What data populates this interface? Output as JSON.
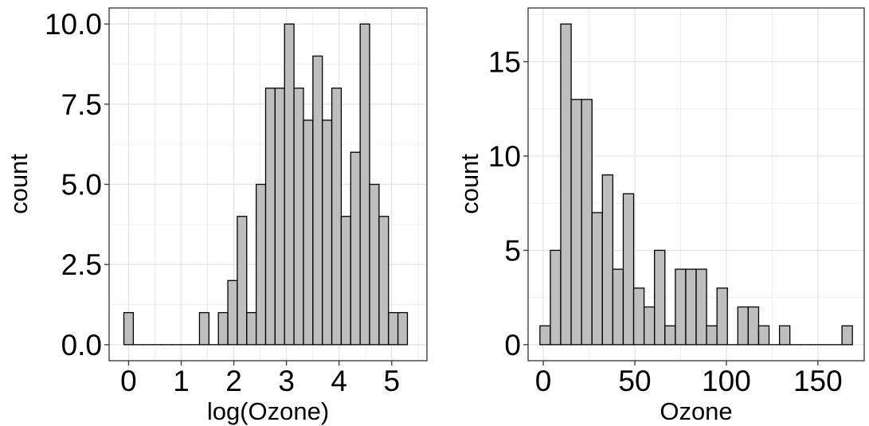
{
  "chart_data": [
    {
      "type": "bar",
      "histogram": true,
      "xlabel": "log(Ozone)",
      "ylabel": "count",
      "bin_width": 0.1796,
      "bin_centers": [
        0.0,
        0.1796,
        0.3593,
        0.5389,
        0.7185,
        0.8981,
        1.0778,
        1.2574,
        1.437,
        1.6166,
        1.7963,
        1.9759,
        2.1555,
        2.3351,
        2.5148,
        2.6944,
        2.874,
        3.0536,
        3.2333,
        3.4129,
        3.5925,
        3.7721,
        3.9518,
        4.1314,
        4.311,
        4.4906,
        4.6703,
        4.8499,
        5.0295,
        5.2091
      ],
      "values": [
        1,
        0,
        0,
        0,
        0,
        0,
        0,
        0,
        1,
        0,
        1,
        2,
        4,
        1,
        5,
        8,
        8,
        10,
        8,
        7,
        9,
        7,
        8,
        4,
        6,
        10,
        5,
        4,
        1,
        1
      ],
      "xlim": [
        -0.37,
        5.67
      ],
      "ylim": [
        -0.5,
        10.5
      ],
      "xticks": [
        0,
        1,
        2,
        3,
        4,
        5
      ],
      "xtick_labels": [
        "0",
        "1",
        "2",
        "3",
        "4",
        "5"
      ],
      "yticks": [
        0,
        2.5,
        5,
        7.5,
        10
      ],
      "ytick_labels": [
        "0.0",
        "2.5",
        "5.0",
        "7.5",
        "10.0"
      ],
      "grid": true,
      "bar_color": "#bebebe",
      "bar_edge_color": "#000000"
    },
    {
      "type": "bar",
      "histogram": true,
      "xlabel": "Ozone",
      "ylabel": "count",
      "bin_width": 5.69,
      "bin_centers": [
        1.0,
        6.69,
        12.38,
        18.07,
        23.76,
        29.45,
        35.14,
        40.83,
        46.52,
        52.21,
        57.9,
        63.59,
        69.28,
        74.97,
        80.66,
        86.35,
        92.03,
        97.72,
        103.41,
        109.1,
        114.79,
        120.48,
        126.17,
        131.86,
        137.55,
        143.24,
        148.93,
        154.62,
        160.31,
        166.0
      ],
      "values": [
        1,
        5,
        17,
        13,
        13,
        7,
        9,
        4,
        8,
        3,
        2,
        5,
        1,
        4,
        4,
        4,
        1,
        3,
        0,
        2,
        2,
        1,
        0,
        1,
        0,
        0,
        0,
        0,
        0,
        1
      ],
      "xlim": [
        -8.3,
        175.3
      ],
      "ylim": [
        -0.85,
        17.85
      ],
      "xticks": [
        0,
        50,
        100,
        150
      ],
      "xtick_labels": [
        "0",
        "50",
        "100",
        "150"
      ],
      "yticks": [
        0,
        5,
        10,
        15
      ],
      "ytick_labels": [
        "0",
        "5",
        "10",
        "15"
      ],
      "grid": true,
      "bar_color": "#bebebe",
      "bar_edge_color": "#000000"
    }
  ]
}
